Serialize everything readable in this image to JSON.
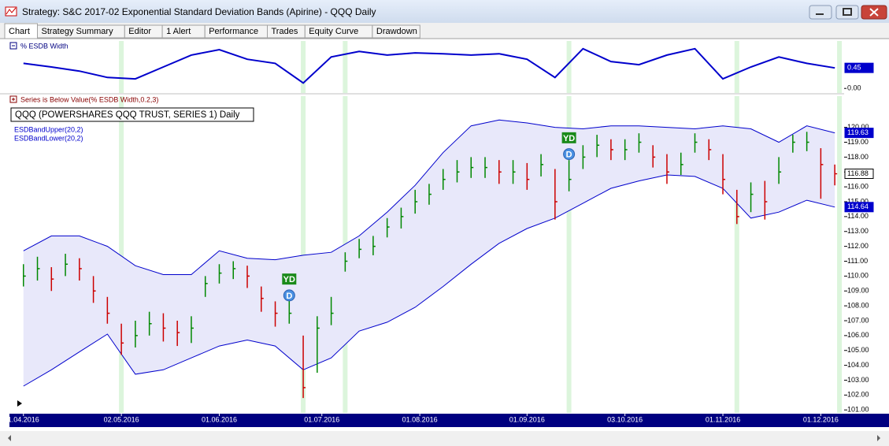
{
  "window": {
    "title": "Strategy: S&C 2017-02 Exponential Standard Deviation Bands (Apirine) - QQQ Daily"
  },
  "tabs": [
    "Chart",
    "Strategy Summary",
    "Editor",
    "1 Alert",
    "Performance",
    "Trades",
    "Equity Curve",
    "Drawdown"
  ],
  "chart_data": [
    {
      "type": "line",
      "title": "% ESDB Width",
      "color": "#0000cc",
      "x": [
        0,
        6,
        12,
        18,
        24,
        30,
        36,
        42,
        48,
        54,
        60,
        66,
        72,
        78,
        84,
        90,
        96,
        102,
        108,
        114,
        120,
        126,
        132,
        138,
        144,
        150,
        156,
        162,
        168,
        174
      ],
      "values": [
        0.55,
        0.47,
        0.38,
        0.24,
        0.21,
        0.47,
        0.73,
        0.85,
        0.64,
        0.55,
        0.12,
        0.69,
        0.81,
        0.73,
        0.78,
        0.76,
        0.73,
        0.76,
        0.64,
        0.24,
        0.87,
        0.59,
        0.52,
        0.73,
        0.87,
        0.21,
        0.47,
        0.69,
        0.55,
        0.45
      ],
      "xlim": [
        -3,
        176
      ],
      "ylim": [
        -0.1,
        1.04
      ],
      "yticks": [
        {
          "value": 0,
          "label": "0.00"
        }
      ],
      "current": {
        "value": 0.45,
        "label": "0.45"
      }
    },
    {
      "type": "ohlc",
      "title": "QQQ (POWERSHARES QQQ TRUST, SERIES 1) Daily",
      "indicator": "Series is Below Value(% ESDB Width,0.2,3)",
      "up_color": "#008800",
      "down_color": "#cc0000",
      "x": [
        0,
        3,
        6,
        9,
        12,
        15,
        18,
        21,
        24,
        27,
        30,
        33,
        36,
        39,
        42,
        45,
        48,
        51,
        54,
        57,
        60,
        63,
        66,
        69,
        72,
        75,
        78,
        81,
        84,
        87,
        90,
        93,
        96,
        99,
        102,
        105,
        108,
        111,
        114,
        117,
        120,
        123,
        126,
        129,
        132,
        135,
        138,
        141,
        144,
        147,
        150,
        153,
        156,
        159,
        162,
        165,
        168,
        171,
        174
      ],
      "high": [
        110.8,
        111.3,
        110.6,
        111.5,
        111.2,
        110,
        108.6,
        106.8,
        107,
        107.6,
        107.5,
        107,
        107.3,
        110,
        110.8,
        111,
        110.7,
        109.3,
        108.3,
        108.8,
        106,
        107.3,
        108.6,
        111.6,
        112.5,
        112.7,
        113.9,
        114.6,
        115.8,
        116.2,
        117.2,
        117.8,
        118,
        118,
        117.8,
        117.8,
        117.6,
        118.2,
        117.2,
        117.8,
        118.8,
        119.5,
        119.2,
        119.2,
        119.6,
        118.8,
        118.2,
        118.3,
        119.6,
        119.2,
        118.2,
        115.8,
        116.3,
        116.4,
        118,
        119.5,
        119.7,
        118.6,
        117.5
      ],
      "low": [
        109.3,
        109.7,
        109,
        110,
        109.7,
        108.2,
        106.8,
        104.7,
        105.2,
        106,
        105.6,
        105.3,
        105.5,
        108.6,
        109.5,
        109.8,
        109.2,
        107.6,
        106.6,
        106.8,
        101.8,
        103.5,
        106.7,
        110.3,
        111.2,
        111.4,
        112.6,
        113.2,
        114.2,
        114.8,
        115.8,
        116.3,
        116.6,
        116.6,
        116.2,
        116.2,
        115.8,
        116.7,
        113.8,
        115.7,
        117.2,
        118,
        117.8,
        117.8,
        118.3,
        117.3,
        116.2,
        116.8,
        118.3,
        117.8,
        115.5,
        113.5,
        114.3,
        113.8,
        116.2,
        118.3,
        118.4,
        115.2,
        116.1
      ],
      "close": [
        110,
        110.5,
        109.8,
        110.8,
        110.5,
        109,
        107.5,
        105.5,
        106,
        106.8,
        106.5,
        106.2,
        106.5,
        109.5,
        110.2,
        110.5,
        110,
        108.5,
        107.5,
        107.5,
        102.5,
        106.5,
        107.5,
        111,
        111.8,
        112,
        113.3,
        114,
        115,
        115.5,
        116.5,
        117,
        117.3,
        117.3,
        117,
        117,
        116.5,
        117.5,
        115,
        116.5,
        118,
        118.8,
        118.5,
        118.5,
        119,
        118,
        117,
        117.5,
        119,
        118.5,
        116.5,
        114,
        115.5,
        115,
        117,
        119,
        119,
        117.5,
        116.88
      ],
      "current": {
        "value": 116.88,
        "label": "116.88"
      },
      "bands": [
        {
          "name": "ESDBandUpper(20,2)",
          "color": "#0000cc",
          "x": [
            0,
            6,
            12,
            18,
            24,
            30,
            36,
            42,
            48,
            54,
            60,
            66,
            72,
            78,
            84,
            90,
            96,
            102,
            108,
            114,
            120,
            126,
            132,
            138,
            144,
            150,
            156,
            162,
            168,
            174
          ],
          "values": [
            111.7,
            112.7,
            112.7,
            112,
            110.7,
            110.1,
            110.1,
            111.7,
            111.2,
            111.1,
            111.4,
            111.6,
            112.7,
            114.3,
            116.1,
            118.3,
            120.1,
            120.5,
            120.3,
            120,
            119.9,
            120.1,
            120.1,
            120,
            119.9,
            120.1,
            119.9,
            119,
            120.1,
            119.63
          ],
          "current": {
            "value": 119.63,
            "label": "119.63"
          }
        },
        {
          "name": "ESDBandLower(20,2)",
          "color": "#0000cc",
          "x": [
            0,
            6,
            12,
            18,
            24,
            30,
            36,
            42,
            48,
            54,
            60,
            66,
            72,
            78,
            84,
            90,
            96,
            102,
            108,
            114,
            120,
            126,
            132,
            138,
            144,
            150,
            156,
            162,
            168,
            174
          ],
          "values": [
            102.6,
            103.7,
            104.9,
            106.1,
            103.4,
            103.7,
            104.5,
            105.3,
            105.7,
            105.3,
            103.7,
            104.5,
            106.3,
            106.9,
            107.9,
            109.3,
            110.8,
            112.2,
            113.2,
            113.9,
            114.9,
            115.9,
            116.4,
            116.8,
            116.7,
            115.9,
            113.9,
            114.3,
            115.1,
            114.64
          ],
          "current": {
            "value": 114.64,
            "label": "114.64"
          }
        }
      ],
      "highlight_x": [
        21,
        60,
        69,
        117,
        153,
        175
      ],
      "annotations": [
        {
          "text": "YD",
          "x": 57,
          "y": 109.8
        },
        {
          "text": "D",
          "x": 57,
          "y": 108.7
        },
        {
          "text": "YD",
          "x": 117,
          "y": 119.3
        },
        {
          "text": "D",
          "x": 117,
          "y": 118.2
        }
      ],
      "xlim": [
        -3,
        176
      ],
      "ylim": [
        100.8,
        122.1
      ],
      "xticks": [
        {
          "value": 0,
          "label": "1.04.2016"
        },
        {
          "value": 21,
          "label": "02.05.2016"
        },
        {
          "value": 42,
          "label": "01.06.2016"
        },
        {
          "value": 64,
          "label": "01.07.2016"
        },
        {
          "value": 85,
          "label": "01.08.2016"
        },
        {
          "value": 108,
          "label": "01.09.2016"
        },
        {
          "value": 129,
          "label": "03.10.2016"
        },
        {
          "value": 150,
          "label": "01.11.2016"
        },
        {
          "value": 171,
          "label": "01.12.2016"
        }
      ],
      "yticks": [
        {
          "value": 101,
          "label": "101.00"
        },
        {
          "value": 102,
          "label": "102.00"
        },
        {
          "value": 103,
          "label": "103.00"
        },
        {
          "value": 104,
          "label": "104.00"
        },
        {
          "value": 105,
          "label": "105.00"
        },
        {
          "value": 106,
          "label": "106.00"
        },
        {
          "value": 107,
          "label": "107.00"
        },
        {
          "value": 108,
          "label": "108.00"
        },
        {
          "value": 109,
          "label": "109.00"
        },
        {
          "value": 110,
          "label": "110.00"
        },
        {
          "value": 111,
          "label": "111.00"
        },
        {
          "value": 112,
          "label": "112.00"
        },
        {
          "value": 113,
          "label": "113.00"
        },
        {
          "value": 114,
          "label": "114.00"
        },
        {
          "value": 115,
          "label": "115.00"
        },
        {
          "value": 116,
          "label": "116.00"
        },
        {
          "value": 117,
          "label": "117.00"
        },
        {
          "value": 118,
          "label": "118.00"
        },
        {
          "value": 119,
          "label": "119.00"
        },
        {
          "value": 120,
          "label": "120.00"
        }
      ]
    }
  ]
}
